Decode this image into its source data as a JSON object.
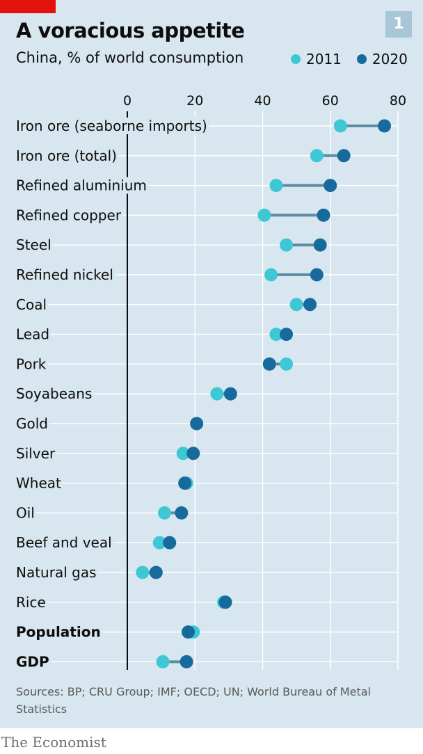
{
  "header": {
    "title": "A voracious appetite",
    "subtitle": "China, % of world consumption",
    "badge": "1"
  },
  "legend": [
    {
      "label": "2011",
      "color": "#3ec8d6"
    },
    {
      "label": "2020",
      "color": "#176a9c"
    }
  ],
  "colors": {
    "series_2011": "#3ec8d6",
    "series_2020": "#176a9c",
    "connector": "#5f8ca3",
    "gridline": "#ffffff",
    "axis": "#0d0d0d",
    "background": "#d7e6ef",
    "brand_red": "#e3120b"
  },
  "chart_data": {
    "type": "dot-range",
    "subtitle": "China, % of world consumption",
    "xlim": [
      0,
      80
    ],
    "xticks": [
      0,
      20,
      40,
      60,
      80
    ],
    "x_axis_position": "top",
    "grid": true,
    "legend_position": "top-right",
    "categories": [
      "Iron ore (seaborne imports)",
      "Iron ore (total)",
      "Refined aluminium",
      "Refined copper",
      "Steel",
      "Refined nickel",
      "Coal",
      "Lead",
      "Pork",
      "Soyabeans",
      "Gold",
      "Silver",
      "Wheat",
      "Oil",
      "Beef and veal",
      "Natural gas",
      "Rice",
      "Population",
      "GDP"
    ],
    "bold_categories": [
      "Population",
      "GDP"
    ],
    "series": [
      {
        "name": "2011",
        "values": [
          63,
          56,
          44,
          40.5,
          47,
          42.5,
          50,
          44,
          47,
          26.5,
          20.5,
          16.5,
          17.5,
          11,
          9.5,
          4.5,
          28.5,
          19.5,
          10.5
        ]
      },
      {
        "name": "2020",
        "values": [
          76,
          64,
          60,
          58,
          57,
          56,
          54,
          47,
          42,
          30.5,
          20.5,
          19.5,
          17,
          16,
          12.5,
          8.5,
          29,
          18,
          17.5
        ]
      }
    ]
  },
  "source": "Sources: BP; CRU Group; IMF; OECD; UN; World Bureau of Metal Statistics",
  "brand": "The Economist"
}
